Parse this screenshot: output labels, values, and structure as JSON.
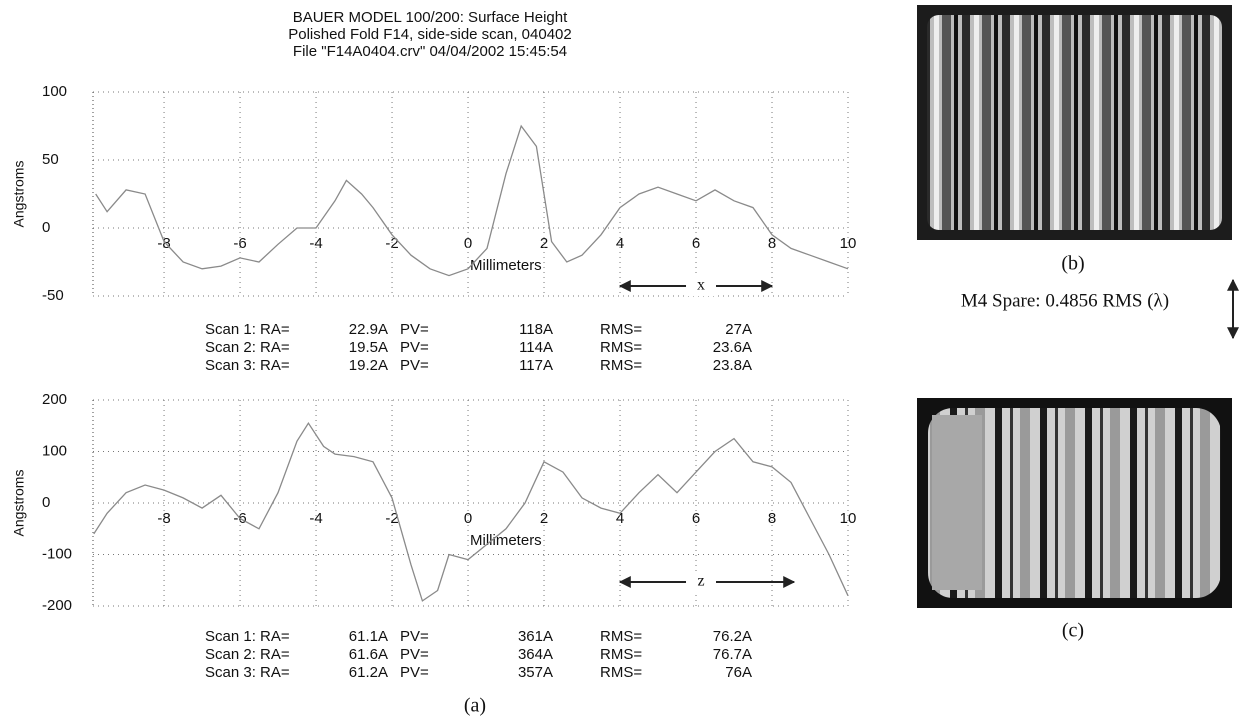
{
  "chart_data": [
    {
      "type": "line",
      "title": [
        "BAUER MODEL 100/200: Surface Height",
        "Polished Fold F14, side-side scan, 040402",
        "File \"F14A0404.crv\"  04/04/2002  15:45:54"
      ],
      "y_label": "Angstroms",
      "x_label": "Millimeters",
      "annotation": "x",
      "xlim": [
        -9.87,
        10
      ],
      "ylim": [
        -50,
        100
      ],
      "xticks": [
        -8,
        -6,
        -4,
        -2,
        0,
        2,
        4,
        6,
        8,
        10
      ],
      "yticks": [
        -50,
        0,
        50,
        100
      ],
      "grid": true,
      "series": [
        {
          "color": "#8a8a8a",
          "x": [
            -9.8,
            -9.5,
            -9.0,
            -8.5,
            -8,
            -7.5,
            -7,
            -6.5,
            -6,
            -5.5,
            -5,
            -4.5,
            -4,
            -3.5,
            -3.2,
            -2.8,
            -2.5,
            -2,
            -1.5,
            -1,
            -0.5,
            0,
            0.5,
            1,
            1.4,
            1.8,
            2.2,
            2.6,
            3,
            3.5,
            4,
            4.5,
            5,
            5.5,
            6,
            6.5,
            7,
            7.5,
            8,
            8.5,
            9,
            9.5,
            10
          ],
          "values": [
            25,
            12,
            28,
            25,
            -10,
            -25,
            -30,
            -28,
            -22,
            -25,
            -12,
            0,
            0,
            20,
            35,
            25,
            15,
            -5,
            -20,
            -30,
            -35,
            -30,
            -15,
            40,
            75,
            60,
            -10,
            -25,
            -20,
            -5,
            15,
            25,
            30,
            25,
            20,
            28,
            20,
            15,
            -5,
            -15,
            -20,
            -25,
            -30
          ]
        }
      ],
      "stats": [
        [
          "Scan 1: RA=",
          "22.9A",
          "PV=",
          "118A",
          "RMS=",
          "27A"
        ],
        [
          "Scan 2: RA=",
          "19.5A",
          "PV=",
          "114A",
          "RMS=",
          "23.6A"
        ],
        [
          "Scan 3: RA=",
          "19.2A",
          "PV=",
          "117A",
          "RMS=",
          "23.8A"
        ]
      ]
    },
    {
      "type": "line",
      "y_label": "Angstroms",
      "x_label": "Millimeters",
      "annotation": "z",
      "xlim": [
        -9.87,
        10
      ],
      "ylim": [
        -200,
        200
      ],
      "xticks": [
        -8,
        -6,
        -4,
        -2,
        0,
        2,
        4,
        6,
        8,
        10
      ],
      "yticks": [
        -200,
        -100,
        0,
        100,
        200
      ],
      "grid": true,
      "series": [
        {
          "color": "#8a8a8a",
          "x": [
            -9.85,
            -9.5,
            -9,
            -8.5,
            -8,
            -7.5,
            -7,
            -6.5,
            -6,
            -5.5,
            -5,
            -4.5,
            -4.2,
            -3.8,
            -3.5,
            -3,
            -2.5,
            -2,
            -1.5,
            -1.2,
            -0.8,
            -0.5,
            0,
            0.5,
            1,
            1.5,
            2,
            2.5,
            3,
            3.5,
            4,
            4.5,
            5,
            5.5,
            6,
            6.5,
            7,
            7.5,
            8,
            8.5,
            9,
            9.5,
            10
          ],
          "values": [
            -60,
            -20,
            20,
            35,
            25,
            10,
            -10,
            15,
            -30,
            -50,
            20,
            120,
            155,
            110,
            95,
            90,
            80,
            10,
            -120,
            -190,
            -170,
            -100,
            -110,
            -80,
            -50,
            0,
            80,
            60,
            10,
            -10,
            -20,
            20,
            55,
            20,
            60,
            100,
            125,
            80,
            70,
            40,
            -30,
            -100,
            -180
          ]
        }
      ],
      "stats": [
        [
          "Scan 1: RA=",
          "61.1A",
          "PV=",
          "361A",
          "RMS=",
          "76.2A"
        ],
        [
          "Scan 2: RA=",
          "61.6A",
          "PV=",
          "364A",
          "RMS=",
          "76.7A"
        ],
        [
          "Scan 3: RA=",
          "61.2A",
          "PV=",
          "357A",
          "RMS=",
          "76A"
        ]
      ]
    }
  ],
  "figure": {
    "caption": "(a)"
  },
  "panels": {
    "b": {
      "caption": "(b)"
    },
    "note": "M4 Spare: 0.4856 RMS (λ)",
    "c": {
      "caption": "(c)"
    }
  }
}
